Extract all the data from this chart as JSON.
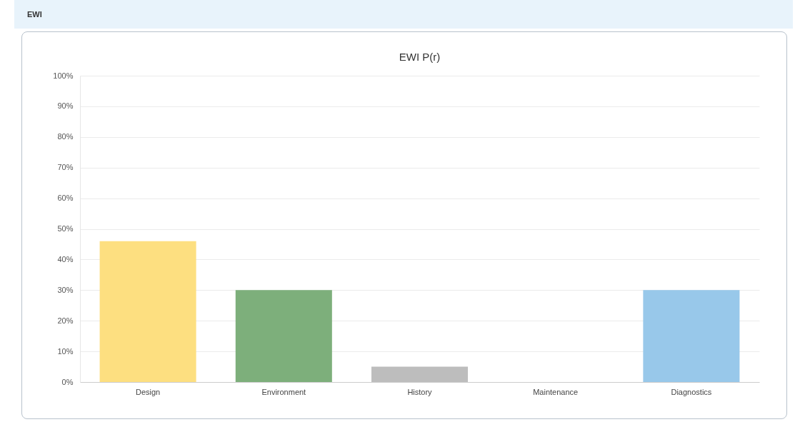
{
  "chart_data": {
    "type": "bar",
    "title": "EWI P(r)",
    "annotations": [
      "EWI"
    ],
    "categories": [
      "Design",
      "Environment",
      "History",
      "Maintenance",
      "Diagnostics"
    ],
    "values": [
      46,
      30,
      5,
      0,
      30
    ],
    "colors": [
      "#fddf80",
      "#7daf7b",
      "#bdbdbd",
      "#c8c8c8",
      "#98c8ea"
    ],
    "ylim": [
      0,
      100
    ],
    "yticks": [
      {
        "value": 0,
        "label": "0%"
      },
      {
        "value": 10,
        "label": "10%"
      },
      {
        "value": 20,
        "label": "20%"
      },
      {
        "value": 30,
        "label": "30%"
      },
      {
        "value": 40,
        "label": "40%"
      },
      {
        "value": 50,
        "label": "50%"
      },
      {
        "value": 60,
        "label": "60%"
      },
      {
        "value": 70,
        "label": "70%"
      },
      {
        "value": 80,
        "label": "80%"
      },
      {
        "value": 90,
        "label": "90%"
      },
      {
        "value": 100,
        "label": "100%"
      }
    ],
    "grid": "y"
  }
}
